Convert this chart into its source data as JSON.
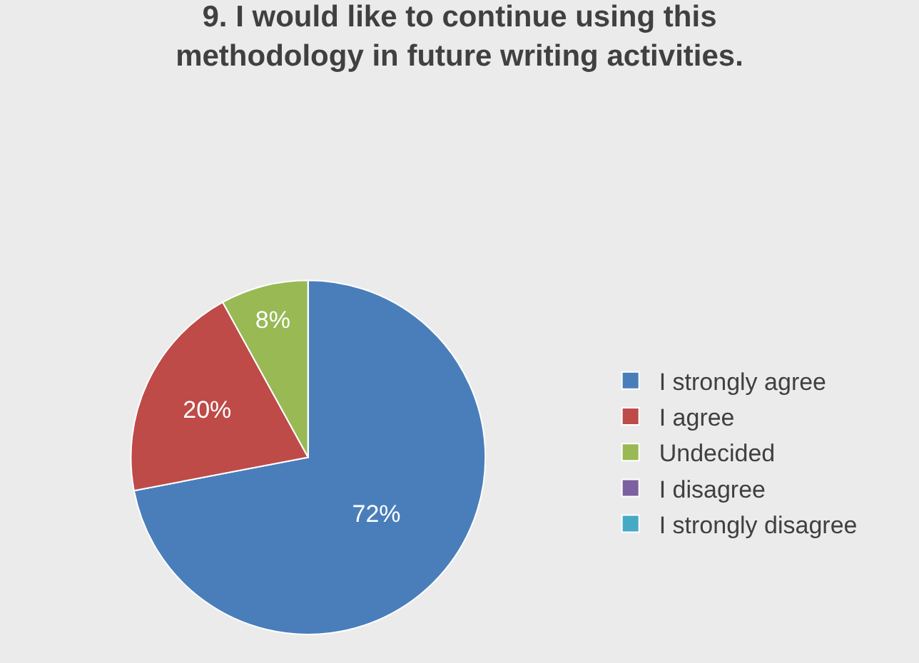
{
  "chart_data": {
    "type": "pie",
    "title": "9. I would like to continue using this methodology in future writing activities.",
    "categories": [
      "I strongly agree",
      "I agree",
      "Undecided",
      "I disagree",
      "I strongly disagree"
    ],
    "values": [
      72,
      20,
      8,
      0,
      0
    ],
    "colors": [
      "#4a7ebb",
      "#be4b48",
      "#98b954",
      "#7d60a0",
      "#46aac5"
    ],
    "value_labels": [
      "72%",
      "20%",
      "8%",
      null,
      null
    ],
    "legend": "right"
  }
}
